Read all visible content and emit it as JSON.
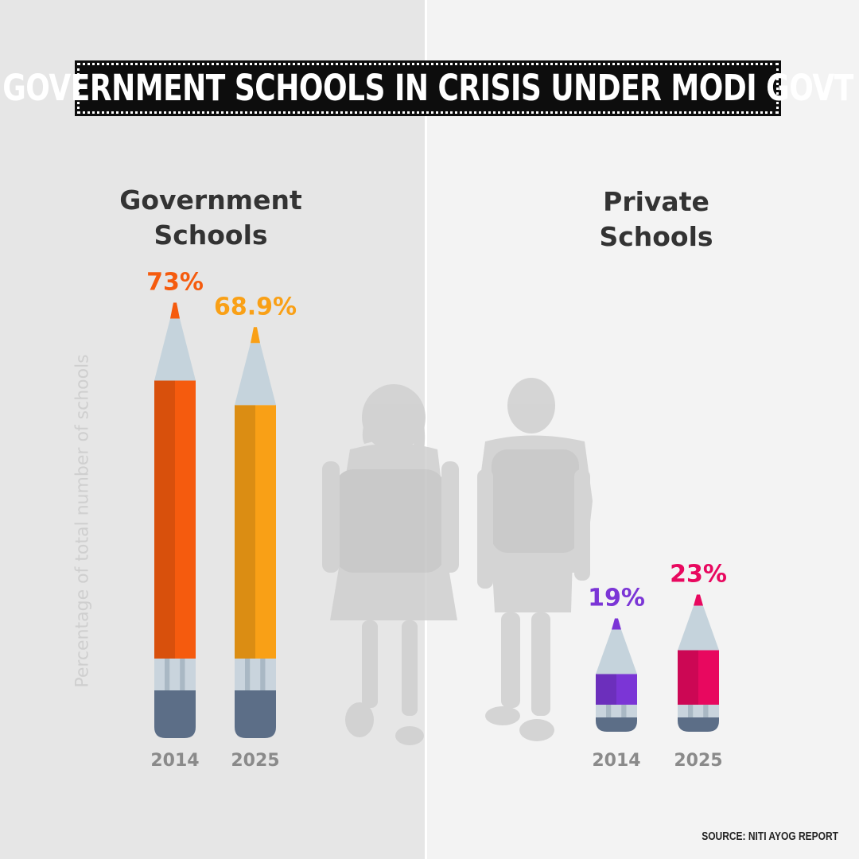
{
  "title": "GOVERNMENT SCHOOLS IN CRISIS UNDER MODI GOVT",
  "ylabel": "Percentage of total number of schools",
  "source": "SOURCE: NITI AYOG REPORT",
  "groups": [
    {
      "title_lines": [
        "Government",
        "Schools"
      ]
    },
    {
      "title_lines": [
        "Private",
        "Schools"
      ]
    }
  ],
  "chart_data": [
    {
      "type": "bar",
      "title": "Government Schools",
      "categories": [
        "2014",
        "2025"
      ],
      "values": [
        73,
        68.9
      ],
      "data_labels": [
        "73%",
        "68.9%"
      ],
      "ylabel": "Percentage of total number of schools",
      "colors": [
        "#f55b0e",
        "#f9a016"
      ]
    },
    {
      "type": "bar",
      "title": "Private Schools",
      "categories": [
        "2014",
        "2025"
      ],
      "values": [
        19,
        23
      ],
      "data_labels": [
        "19%",
        "23%"
      ],
      "ylabel": "Percentage of total number of schools",
      "colors": [
        "#7b35d6",
        "#e8085f"
      ]
    }
  ]
}
